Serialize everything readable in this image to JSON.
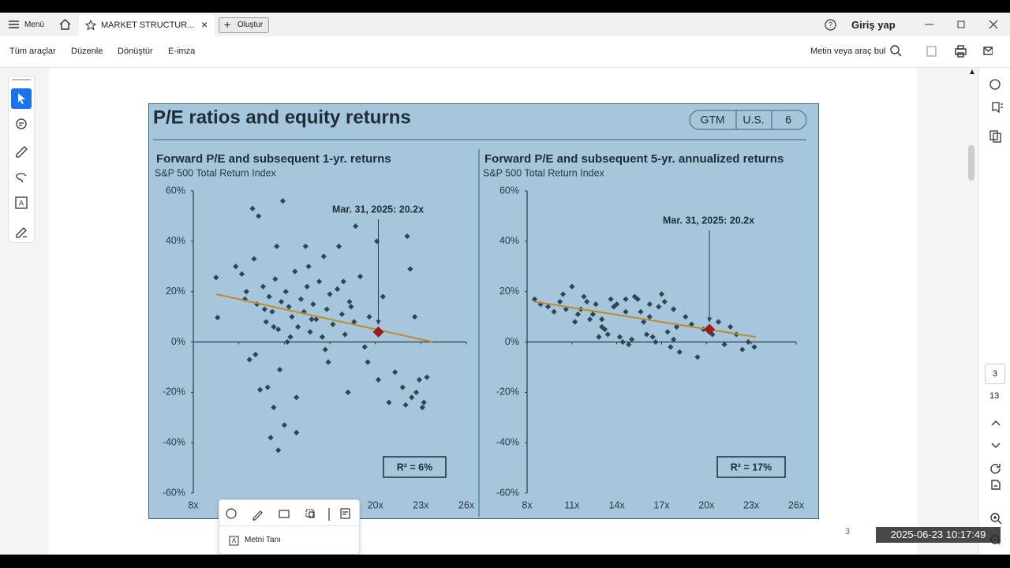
{
  "tabs": {
    "menu": "Menü",
    "document": "MARKET STRUCTUR...",
    "create": "Oluştur",
    "sign_in": "Giriş yap"
  },
  "toolbar": {
    "items": [
      "Tüm araçlar",
      "Düzenle",
      "Dönüştür",
      "E-imza"
    ],
    "search": "Metin veya araç bul"
  },
  "slide": {
    "title": "P/E ratios and equity returns",
    "badges": [
      "GTM",
      "U.S.",
      "6"
    ]
  },
  "page_footer": "3",
  "page_nav": {
    "current": "3",
    "total": "13"
  },
  "timestamp": "2025-06-23  10:17:49",
  "context_menu": {
    "action": "Metni Tanı"
  },
  "chart_data": [
    {
      "type": "scatter",
      "title": "Forward P/E and subsequent 1-yr. returns",
      "subtitle": "S&P 500 Total Return Index",
      "annotation": "Mar. 31, 2025:  20.2x",
      "r_squared_label": "R² = 6%",
      "color": "#2f4556",
      "xlim": [
        8,
        26
      ],
      "ylim": [
        -60,
        60
      ],
      "xticks": [
        {
          "value": 8,
          "label": "8x"
        },
        {
          "value": 11,
          "label": "11x"
        },
        {
          "value": 14,
          "label": "14x"
        },
        {
          "value": 17,
          "label": "17x"
        },
        {
          "value": 20,
          "label": "20x"
        },
        {
          "value": 23,
          "label": "23x"
        },
        {
          "value": 26,
          "label": "26x"
        }
      ],
      "yticks": [
        {
          "value": 60,
          "label": "60%"
        },
        {
          "value": 40,
          "label": "40%"
        },
        {
          "value": 20,
          "label": "20%"
        },
        {
          "value": 0,
          "label": "0%"
        },
        {
          "value": -20,
          "label": "-20%"
        },
        {
          "value": -40,
          "label": "-40%"
        },
        {
          "value": -60,
          "label": "-60%"
        }
      ],
      "x": [
        9.5,
        9.6,
        11.9,
        12.3,
        13.9,
        11.7,
        12.4,
        12.9,
        13.3,
        13.1,
        13.6,
        14.0,
        14.8,
        13.7,
        14.8,
        13.5,
        15.4,
        16.6,
        17.6,
        18.7,
        20.1,
        18.2,
        20.5,
        19.5,
        20.2,
        20.9,
        21.3,
        22.1,
        22.3,
        22.6,
        22.4,
        22.9,
        21.8,
        22.0,
        22.7,
        23.2,
        23.4,
        23.1,
        10.8,
        11.2,
        11.5,
        12.0,
        12.2,
        12.6,
        12.8,
        13.0,
        13.2,
        13.4,
        13.6,
        13.8,
        14.1,
        14.3,
        14.5,
        14.7,
        14.9,
        15.1,
        15.3,
        15.5,
        15.7,
        15.9,
        16.1,
        16.3,
        16.5,
        16.8,
        17.0,
        17.2,
        17.5,
        17.8,
        18.0,
        18.3,
        18.6,
        19.0,
        19.3,
        19.6,
        12.1,
        13.3,
        14.4,
        15.6,
        16.7,
        17.9,
        11.4,
        12.7,
        14.2,
        15.8,
        16.9,
        18.4
      ],
      "values": [
        25.6,
        9.7,
        53,
        50,
        56,
        -7,
        -19,
        -18,
        -26,
        -38,
        -43,
        -33,
        -36,
        -11,
        -22,
        38,
        38,
        34,
        38,
        46,
        40,
        -20,
        18,
        -8,
        -15,
        -24,
        -12,
        42,
        29,
        10,
        -22,
        -15,
        -18,
        -25,
        -20,
        -24,
        -14,
        -26,
        30,
        27,
        20,
        33,
        15,
        22,
        8,
        18,
        12,
        25,
        5,
        16,
        20,
        14,
        10,
        28,
        6,
        17,
        12,
        22,
        4,
        15,
        9,
        24,
        2,
        13,
        19,
        7,
        21,
        11,
        3,
        16,
        8,
        26,
        -2,
        10,
        -5,
        6,
        2,
        30,
        -3,
        24,
        17,
        13,
        0,
        9,
        -8,
        14
      ],
      "highlight": {
        "x": 20.2,
        "value": 4,
        "color": "#9b1b1b"
      },
      "trend": {
        "x": [
          9.5,
          23.8
        ],
        "values": [
          19,
          0
        ],
        "color": "#c08a2a"
      }
    },
    {
      "type": "scatter",
      "title": "Forward P/E and subsequent 5-yr. annualized returns",
      "subtitle": "S&P 500 Total Return Index",
      "annotation": "Mar. 31, 2025:  20.2x",
      "r_squared_label": "R² = 17%",
      "color": "#2f4556",
      "xlim": [
        8,
        26
      ],
      "ylim": [
        -60,
        60
      ],
      "xticks": [
        {
          "value": 8,
          "label": "8x"
        },
        {
          "value": 11,
          "label": "11x"
        },
        {
          "value": 14,
          "label": "14x"
        },
        {
          "value": 17,
          "label": "17x"
        },
        {
          "value": 20,
          "label": "20x"
        },
        {
          "value": 23,
          "label": "23x"
        },
        {
          "value": 26,
          "label": "26x"
        }
      ],
      "yticks": [
        {
          "value": 60,
          "label": "60%"
        },
        {
          "value": 40,
          "label": "40%"
        },
        {
          "value": 20,
          "label": "20%"
        },
        {
          "value": 0,
          "label": "0%"
        },
        {
          "value": -20,
          "label": "-20%"
        },
        {
          "value": -40,
          "label": "-40%"
        },
        {
          "value": -60,
          "label": "-60%"
        }
      ],
      "x": [
        8.5,
        8.9,
        9.4,
        9.8,
        10.2,
        10.6,
        11.0,
        11.4,
        11.8,
        12.2,
        12.6,
        13.0,
        13.4,
        13.8,
        14.2,
        14.6,
        15.0,
        15.4,
        15.8,
        16.2,
        16.6,
        17.0,
        17.4,
        17.8,
        18.2,
        18.6,
        19.0,
        19.4,
        19.8,
        20.4,
        20.8,
        21.2,
        21.6,
        22.0,
        22.4,
        22.8,
        23.2,
        10.4,
        11.2,
        12.0,
        12.8,
        13.6,
        14.4,
        15.2,
        16.0,
        16.8,
        17.6,
        12.4,
        13.2,
        14.0,
        14.8,
        15.6,
        16.4,
        17.2,
        18.0,
        11.6,
        13.0,
        14.6,
        16.2,
        17.8
      ],
      "values": [
        17,
        15,
        14,
        12,
        16,
        13,
        22,
        11,
        18,
        9,
        15,
        6,
        3,
        14,
        2,
        12,
        1,
        17,
        8,
        15,
        0,
        19,
        4,
        13,
        -4,
        10,
        7,
        -6,
        5,
        3,
        8,
        -1,
        6,
        3,
        -3,
        0,
        -2,
        19,
        8,
        16,
        2,
        17,
        0,
        18,
        3,
        14,
        -2,
        11,
        5,
        15,
        -1,
        12,
        2,
        16,
        6,
        13,
        9,
        17,
        10,
        1
      ],
      "highlight": {
        "x": 20.2,
        "value": 5,
        "color": "#9b1b1b"
      },
      "trend": {
        "x": [
          8.5,
          23.3
        ],
        "values": [
          16,
          2
        ],
        "color": "#c08a2a"
      }
    }
  ]
}
